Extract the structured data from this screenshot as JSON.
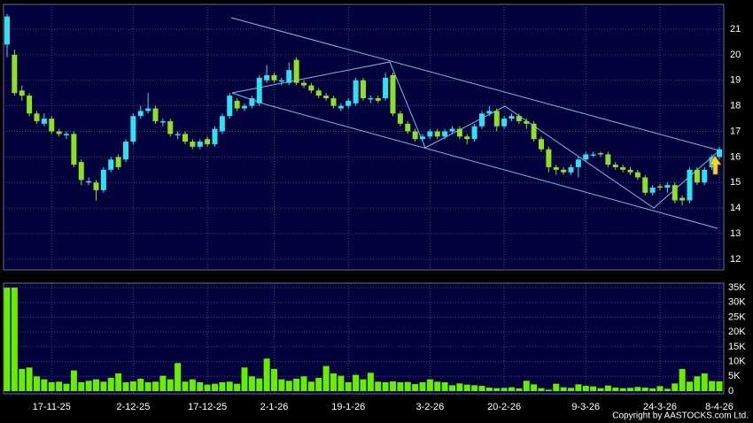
{
  "chart_data": {
    "type": "candlestick",
    "categories": [
      null,
      null,
      null,
      null,
      null,
      null,
      "17-11-25",
      null,
      null,
      null,
      null,
      null,
      null,
      null,
      null,
      null,
      null,
      "2-12-25",
      null,
      null,
      null,
      null,
      null,
      null,
      null,
      null,
      null,
      "17-12-25",
      null,
      null,
      null,
      null,
      null,
      null,
      null,
      null,
      "2-1-26",
      null,
      null,
      null,
      null,
      null,
      null,
      null,
      null,
      null,
      "19-1-26",
      null,
      null,
      null,
      null,
      null,
      null,
      null,
      null,
      null,
      null,
      "3-2-26",
      null,
      null,
      null,
      null,
      null,
      null,
      null,
      null,
      null,
      "20-2-26",
      null,
      null,
      null,
      null,
      null,
      null,
      null,
      null,
      null,
      null,
      "9-3-26",
      null,
      null,
      null,
      null,
      null,
      null,
      null,
      null,
      null,
      "24-3-26",
      null,
      null,
      null,
      null,
      null,
      null,
      null,
      "8-4-26"
    ],
    "open": [
      20.4,
      20.0,
      18.6,
      18.4,
      17.7,
      17.3,
      17.5,
      17.0,
      16.85,
      16.9,
      15.8,
      15.0,
      15.0,
      14.7,
      15.5,
      16.0,
      15.9,
      16.6,
      17.6,
      17.8,
      17.9,
      17.35,
      17.4,
      16.85,
      16.9,
      16.6,
      16.4,
      16.7,
      16.5,
      17.0,
      17.6,
      18.2,
      17.9,
      18.0,
      18.1,
      19.0,
      19.2,
      18.95,
      18.9,
      19.8,
      18.9,
      18.8,
      18.6,
      18.4,
      18.3,
      17.9,
      18.0,
      18.1,
      19.0,
      18.25,
      18.3,
      18.3,
      19.2,
      17.7,
      17.3,
      17.0,
      16.7,
      16.8,
      17.0,
      16.8,
      17.0,
      17.1,
      16.8,
      16.7,
      17.2,
      17.7,
      17.8,
      17.2,
      17.5,
      17.6,
      17.4,
      17.3,
      16.7,
      16.3,
      15.6,
      15.5,
      15.4,
      15.6,
      15.9,
      16.05,
      16.15,
      16.1,
      15.7,
      15.6,
      15.5,
      15.4,
      15.2,
      14.6,
      14.85,
      14.8,
      14.9,
      14.4,
      14.3,
      15.5,
      15.0,
      15.6,
      16.0
    ],
    "high": [
      21.6,
      20.2,
      18.8,
      18.5,
      17.8,
      17.7,
      17.6,
      17.1,
      17.0,
      17.0,
      15.9,
      15.2,
      15.1,
      15.6,
      16.0,
      16.1,
      16.7,
      17.7,
      18.0,
      18.5,
      18.0,
      17.5,
      17.5,
      17.0,
      17.0,
      16.7,
      16.7,
      16.8,
      17.2,
      17.7,
      18.5,
      18.3,
      18.1,
      18.4,
      19.2,
      19.6,
      19.3,
      19.1,
      19.7,
      19.9,
      19.0,
      18.9,
      18.7,
      18.5,
      18.4,
      18.1,
      18.3,
      19.1,
      19.1,
      18.4,
      18.4,
      19.3,
      19.3,
      17.8,
      17.4,
      17.1,
      16.9,
      17.1,
      17.1,
      17.1,
      17.2,
      17.2,
      16.9,
      17.3,
      17.8,
      18.0,
      17.9,
      17.6,
      17.7,
      17.7,
      17.5,
      17.4,
      16.8,
      16.4,
      15.7,
      15.6,
      15.7,
      16.0,
      16.2,
      16.2,
      16.2,
      16.2,
      15.8,
      15.7,
      15.6,
      15.5,
      15.3,
      14.9,
      14.95,
      15.0,
      15.0,
      14.5,
      15.6,
      15.6,
      15.6,
      16.1,
      16.4
    ],
    "low": [
      19.9,
      18.4,
      18.2,
      17.6,
      17.3,
      17.2,
      16.9,
      16.8,
      16.7,
      15.6,
      14.9,
      14.9,
      14.3,
      14.6,
      15.4,
      15.5,
      15.8,
      16.5,
      17.5,
      17.7,
      17.3,
      17.2,
      16.8,
      16.7,
      16.5,
      16.3,
      16.3,
      16.4,
      16.4,
      16.9,
      17.5,
      17.8,
      17.8,
      17.9,
      18.0,
      18.9,
      18.9,
      18.8,
      18.8,
      18.8,
      18.7,
      18.5,
      18.3,
      18.2,
      17.9,
      17.8,
      17.9,
      18.0,
      18.2,
      18.1,
      18.1,
      18.2,
      17.6,
      17.2,
      16.9,
      16.6,
      16.6,
      16.7,
      16.7,
      16.7,
      16.9,
      16.7,
      16.5,
      16.6,
      17.1,
      17.6,
      17.0,
      17.1,
      17.4,
      17.3,
      17.1,
      16.6,
      16.2,
      15.4,
      15.3,
      15.3,
      15.3,
      15.2,
      15.8,
      16.0,
      16.0,
      15.6,
      15.5,
      15.4,
      15.3,
      15.1,
      14.5,
      14.5,
      14.7,
      14.6,
      14.2,
      14.1,
      14.2,
      14.9,
      14.9,
      15.5,
      15.9
    ],
    "close": [
      21.5,
      18.5,
      18.4,
      17.7,
      17.4,
      17.5,
      17.0,
      16.9,
      16.9,
      15.7,
      15.1,
      15.05,
      14.7,
      15.5,
      15.9,
      15.6,
      16.6,
      17.6,
      17.8,
      17.9,
      17.4,
      17.4,
      16.9,
      16.9,
      16.6,
      16.4,
      16.6,
      16.5,
      17.1,
      17.6,
      18.4,
      17.9,
      18.0,
      18.3,
      19.1,
      19.2,
      19.0,
      19.0,
      19.4,
      18.9,
      18.8,
      18.6,
      18.4,
      18.3,
      18.0,
      18.0,
      18.2,
      19.0,
      18.3,
      18.3,
      18.2,
      19.1,
      17.7,
      17.3,
      17.0,
      16.7,
      16.8,
      17.0,
      16.8,
      17.0,
      17.1,
      16.8,
      16.7,
      17.2,
      17.7,
      17.8,
      17.2,
      17.5,
      17.6,
      17.4,
      17.3,
      16.7,
      16.3,
      15.6,
      15.5,
      15.4,
      15.6,
      15.9,
      16.1,
      16.1,
      16.1,
      15.7,
      15.6,
      15.5,
      15.4,
      15.2,
      14.6,
      14.8,
      14.8,
      14.9,
      14.3,
      14.3,
      15.5,
      15.0,
      15.5,
      16.0,
      16.3
    ],
    "up_color": "#30e0f0",
    "down_color": "#8ce02a",
    "ylim": [
      11.58,
      21.97
    ],
    "yticks": [
      12,
      13,
      14,
      15,
      16,
      17,
      18,
      19,
      20,
      21
    ],
    "volume": {
      "type": "bar",
      "color": "#66ee00",
      "values": [
        35000,
        35000,
        7500,
        8000,
        5000,
        4000,
        3000,
        3200,
        2500,
        7000,
        3000,
        3500,
        4000,
        3200,
        4500,
        6000,
        3000,
        3300,
        4200,
        3000,
        3200,
        5200,
        4000,
        9500,
        3200,
        4000,
        3000,
        2200,
        2500,
        3000,
        3200,
        2500,
        8000,
        5000,
        4300,
        11000,
        7500,
        4000,
        3500,
        4200,
        5000,
        3200,
        4500,
        8500,
        6000,
        5200,
        3000,
        5500,
        4000,
        6200,
        3200,
        3000,
        3300,
        3000,
        3100,
        2400,
        3000,
        4000,
        3200,
        3000,
        2000,
        2600,
        2200,
        2000,
        1800,
        1200,
        1000,
        1100,
        1300,
        900,
        3500,
        2300,
        1000,
        500,
        2500,
        1300,
        1100,
        2300,
        1800,
        1600,
        1000,
        1900,
        1200,
        1000,
        1100,
        1400,
        1200,
        900,
        1700,
        800,
        2600,
        7500,
        3200,
        5000,
        6000,
        3400,
        3300
      ],
      "ylim": [
        0,
        36500
      ],
      "yticks": [
        0,
        {
          "value": 5000,
          "label": "5K"
        },
        {
          "value": 10000,
          "label": "10K"
        },
        {
          "value": 15000,
          "label": "15K"
        },
        {
          "value": 20000,
          "label": "20K"
        },
        {
          "value": 25000,
          "label": "25K"
        },
        {
          "value": 30000,
          "label": "30K"
        },
        {
          "value": 35000,
          "label": "35K"
        }
      ]
    },
    "copyright": "Copyright by AASTOCKS.com Ltd."
  }
}
